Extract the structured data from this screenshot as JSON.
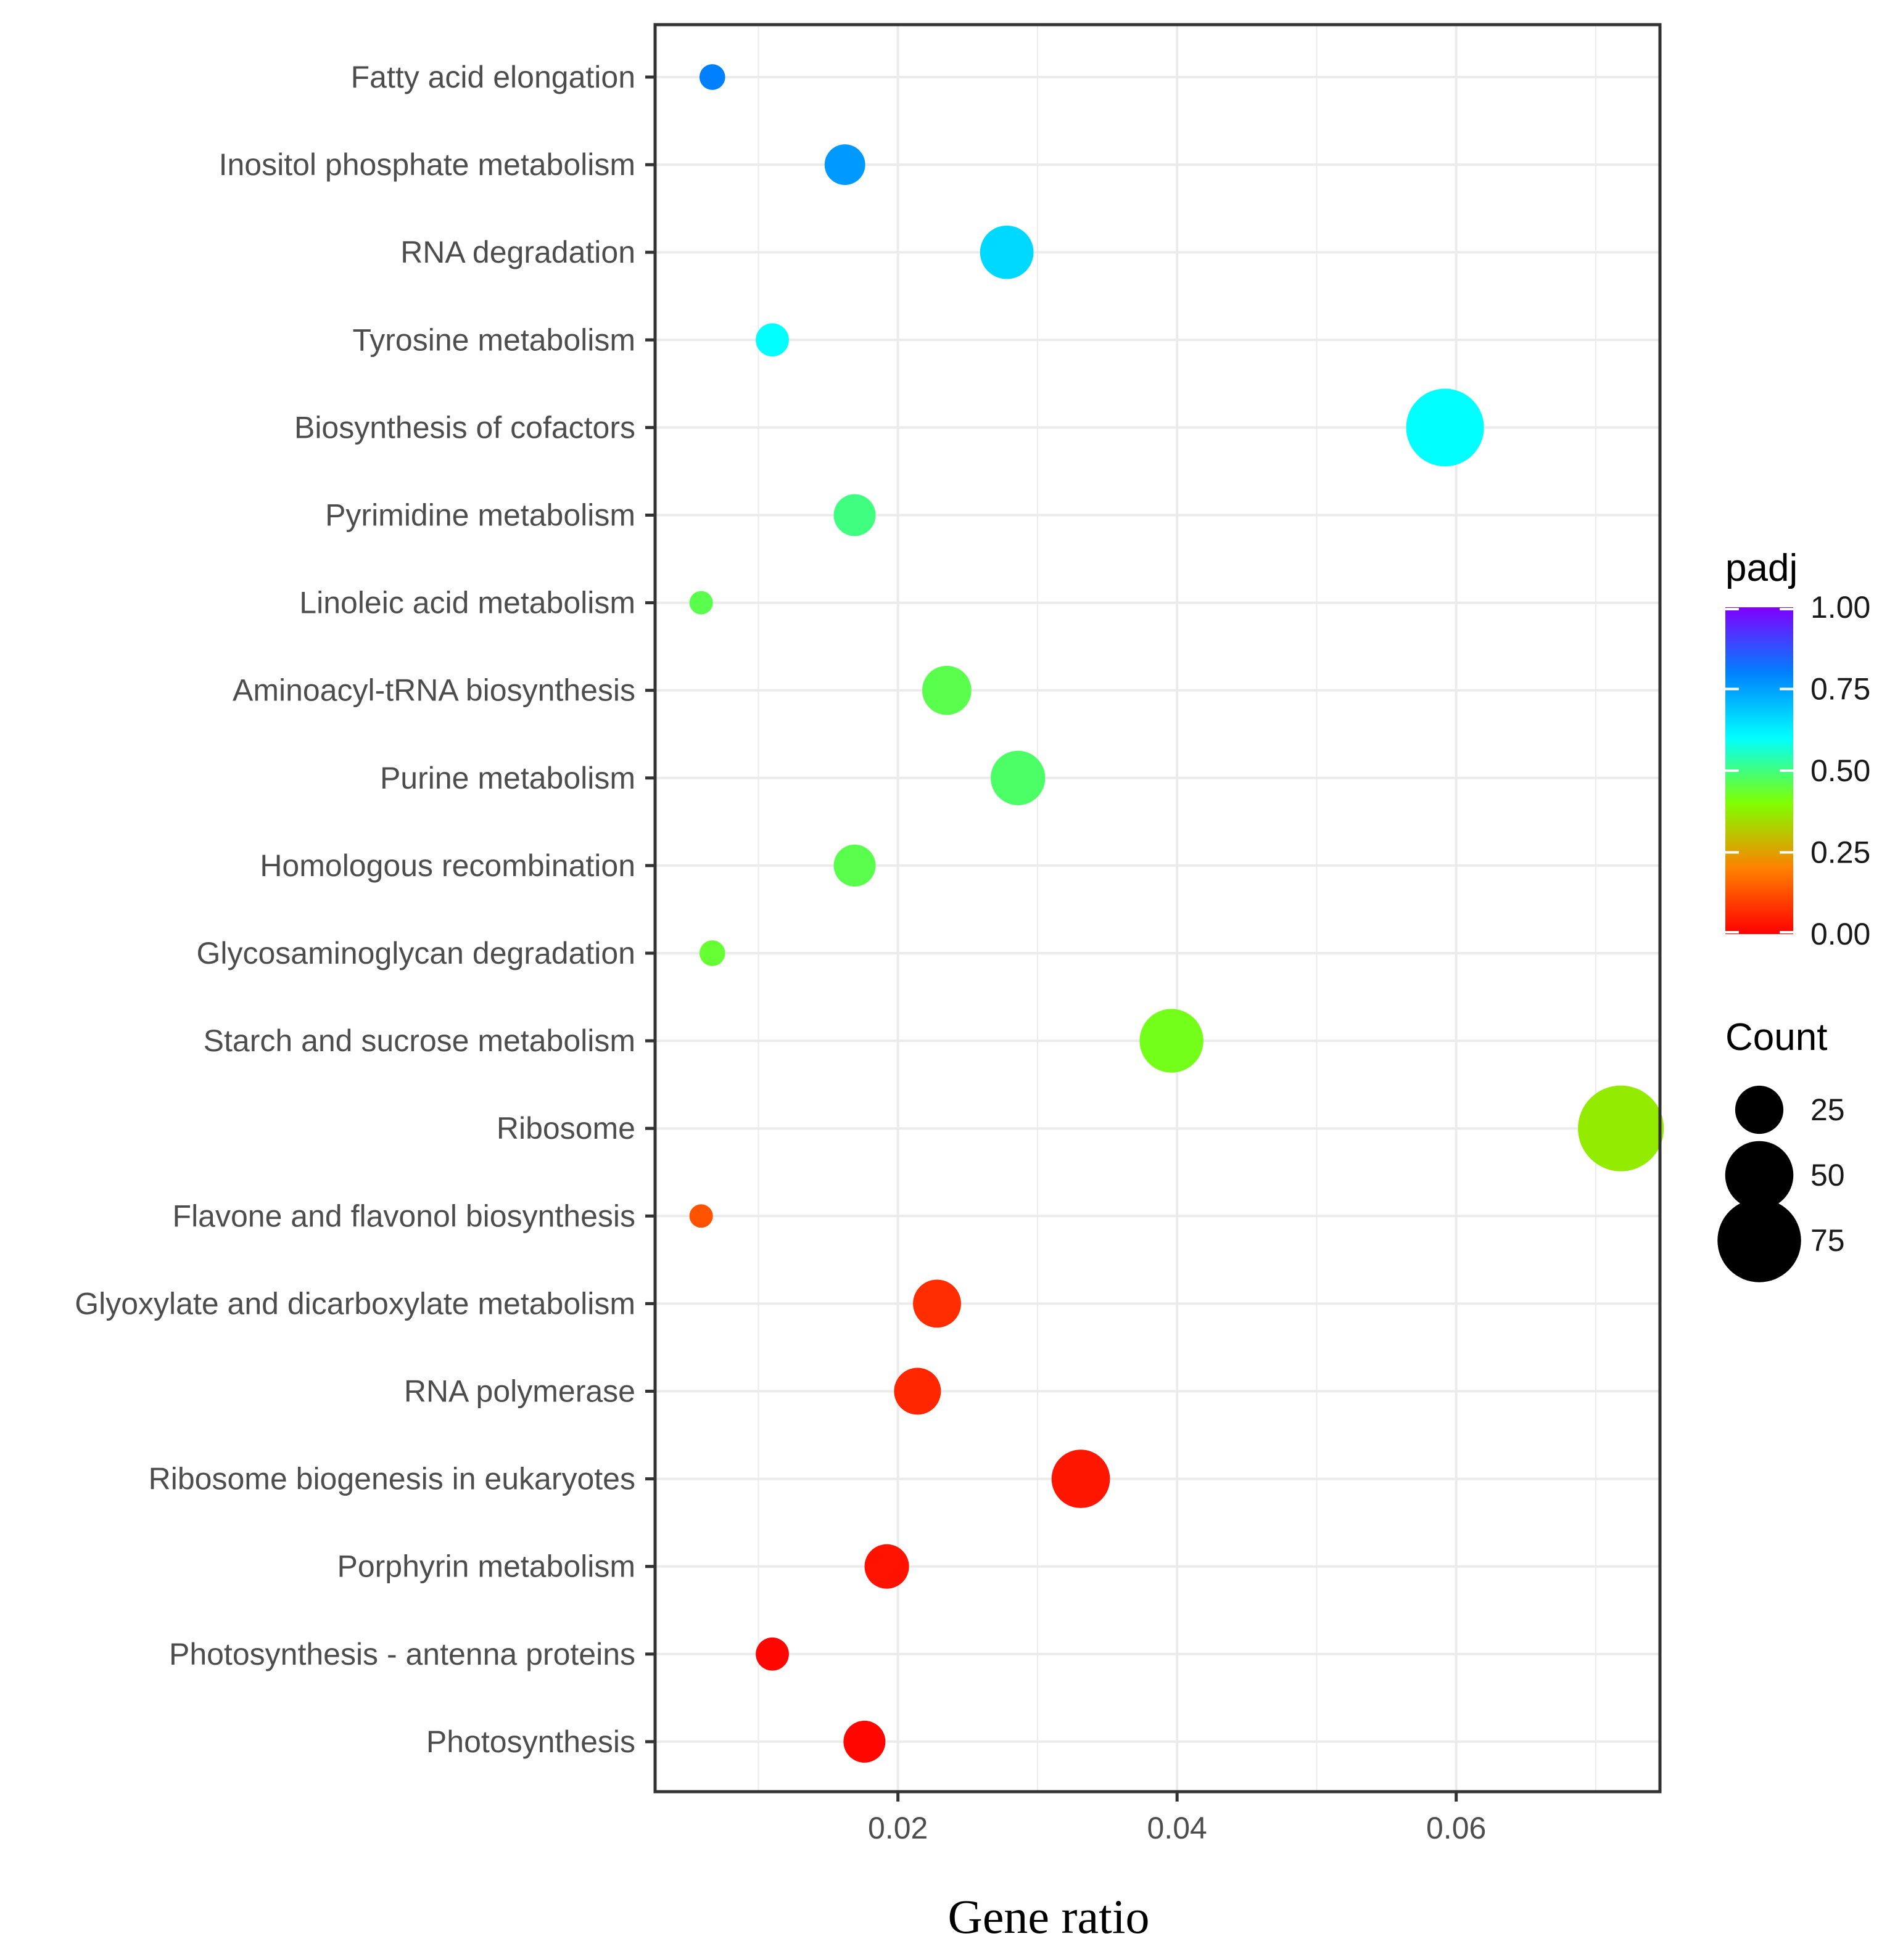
{
  "chart_data": {
    "type": "scatter",
    "title": "",
    "xlabel": "Gene ratio",
    "ylabel": "",
    "xlim": [
      0.0026,
      0.0746
    ],
    "x_ticks": [
      {
        "value": 0.02,
        "label": "0.02"
      },
      {
        "value": 0.04,
        "label": "0.04"
      },
      {
        "value": 0.06,
        "label": "0.06"
      }
    ],
    "grid": true,
    "categories": [
      "Fatty acid elongation",
      "Inositol phosphate metabolism",
      "RNA degradation",
      "Tyrosine metabolism",
      "Biosynthesis of cofactors",
      "Pyrimidine metabolism",
      "Linoleic acid metabolism",
      "Aminoacyl-tRNA biosynthesis",
      "Purine metabolism",
      "Homologous recombination",
      "Glycosaminoglycan degradation",
      "Starch and sucrose metabolism",
      "Ribosome",
      "Flavone and flavonol biosynthesis",
      "Glyoxylate and dicarboxylate metabolism",
      "RNA polymerase",
      "Ribosome biogenesis in eukaryotes",
      "Porphyrin metabolism",
      "Photosynthesis - antenna proteins",
      "Photosynthesis"
    ],
    "points": [
      {
        "category": "Fatty acid elongation",
        "gene_ratio": 0.0067,
        "count": 6,
        "padj": 0.8
      },
      {
        "category": "Inositol phosphate metabolism",
        "gene_ratio": 0.0162,
        "count": 15,
        "padj": 0.76
      },
      {
        "category": "RNA degradation",
        "gene_ratio": 0.0278,
        "count": 26,
        "padj": 0.66
      },
      {
        "category": "Tyrosine metabolism",
        "gene_ratio": 0.011,
        "count": 10,
        "padj": 0.6
      },
      {
        "category": "Biosynthesis of cofactors",
        "gene_ratio": 0.0592,
        "count": 55,
        "padj": 0.6
      },
      {
        "category": "Pyrimidine metabolism",
        "gene_ratio": 0.0169,
        "count": 16,
        "padj": 0.5
      },
      {
        "category": "Linoleic acid metabolism",
        "gene_ratio": 0.0059,
        "count": 5,
        "padj": 0.46
      },
      {
        "category": "Aminoacyl-tRNA biosynthesis",
        "gene_ratio": 0.0235,
        "count": 22,
        "padj": 0.46
      },
      {
        "category": "Purine metabolism",
        "gene_ratio": 0.0286,
        "count": 27,
        "padj": 0.48
      },
      {
        "category": "Homologous recombination",
        "gene_ratio": 0.0169,
        "count": 16,
        "padj": 0.46
      },
      {
        "category": "Glycosaminoglycan degradation",
        "gene_ratio": 0.0067,
        "count": 6,
        "padj": 0.44
      },
      {
        "category": "Starch and sucrose metabolism",
        "gene_ratio": 0.0396,
        "count": 37,
        "padj": 0.42
      },
      {
        "category": "Ribosome",
        "gene_ratio": 0.0718,
        "count": 67,
        "padj": 0.37
      },
      {
        "category": "Flavone and flavonol biosynthesis",
        "gene_ratio": 0.0059,
        "count": 5,
        "padj": 0.13
      },
      {
        "category": "Glyoxylate and dicarboxylate metabolism",
        "gene_ratio": 0.0228,
        "count": 21,
        "padj": 0.07
      },
      {
        "category": "RNA polymerase",
        "gene_ratio": 0.0214,
        "count": 20,
        "padj": 0.06
      },
      {
        "category": "Ribosome biogenesis in eukaryotes",
        "gene_ratio": 0.0331,
        "count": 31,
        "padj": 0.035
      },
      {
        "category": "Porphyrin metabolism",
        "gene_ratio": 0.0192,
        "count": 18,
        "padj": 0.03
      },
      {
        "category": "Photosynthesis - antenna proteins",
        "gene_ratio": 0.011,
        "count": 10,
        "padj": 0.01
      },
      {
        "category": "Photosynthesis",
        "gene_ratio": 0.0176,
        "count": 16,
        "padj": 0.01
      }
    ],
    "legend_color": {
      "title": "padj",
      "range": [
        0,
        1
      ],
      "ticks": [
        {
          "value": 1.0,
          "label": "1.00"
        },
        {
          "value": 0.75,
          "label": "0.75"
        },
        {
          "value": 0.5,
          "label": "0.50"
        },
        {
          "value": 0.25,
          "label": "0.25"
        },
        {
          "value": 0.0,
          "label": "0.00"
        }
      ],
      "gradient": [
        "#ff0000",
        "#ff8000",
        "#80ff00",
        "#00ffff",
        "#0080ff",
        "#8000ff"
      ]
    },
    "legend_size": {
      "title": "Count",
      "entries": [
        {
          "value": 25,
          "label": "25"
        },
        {
          "value": 50,
          "label": "50"
        },
        {
          "value": 75,
          "label": "75"
        }
      ]
    },
    "legend_placement": "right"
  }
}
